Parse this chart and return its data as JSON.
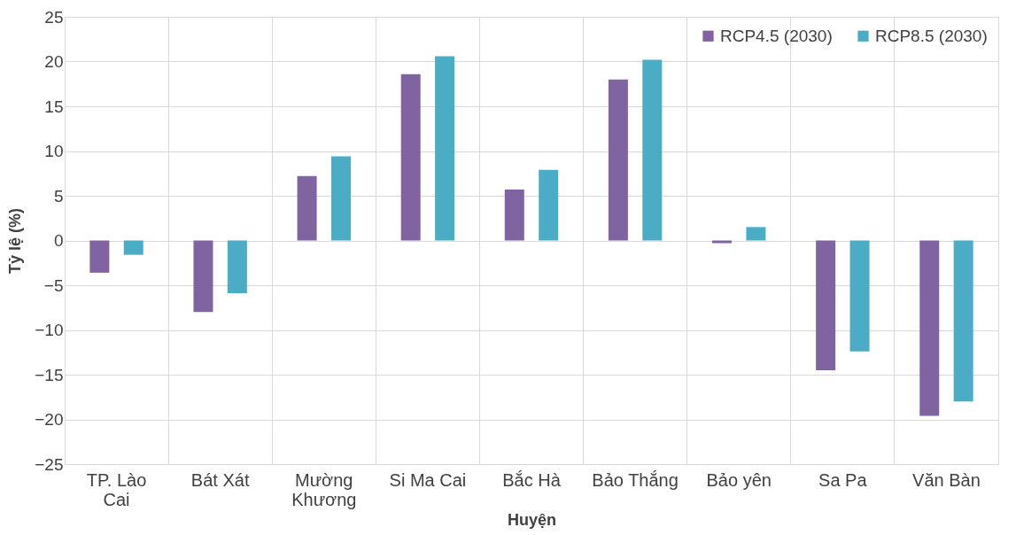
{
  "chart_data": {
    "type": "bar",
    "xlabel": "Huyện",
    "ylabel": "Tỷ lệ (%)",
    "categories": [
      "TP. Lào Cai",
      "Bát Xát",
      "Mường Khương",
      "Si Ma Cai",
      "Bắc Hà",
      "Bảo Thắng",
      "Bảo yên",
      "Sa Pa",
      "Văn Bàn"
    ],
    "series": [
      {
        "name": "RCP4.5 (2030)",
        "color": "#8064a2",
        "values": [
          -3.6,
          -8.0,
          7.2,
          18.6,
          5.7,
          18.0,
          -0.3,
          -14.5,
          -19.6
        ]
      },
      {
        "name": "RCP8.5 (2030)",
        "color": "#4bacc6",
        "values": [
          -1.6,
          -5.9,
          9.4,
          20.6,
          7.9,
          20.2,
          1.5,
          -12.4,
          -18.0
        ]
      }
    ],
    "ylim": [
      -25,
      25
    ],
    "yticks": [
      -25,
      -20,
      -15,
      -10,
      -5,
      0,
      5,
      10,
      15,
      20,
      25
    ],
    "grid": true,
    "legend": "top right"
  }
}
